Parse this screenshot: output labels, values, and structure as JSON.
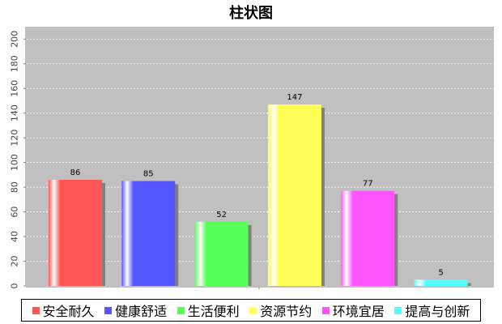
{
  "chart_data": {
    "type": "bar",
    "title": "柱状图",
    "xlabel": "",
    "ylabel": "",
    "ylim": [
      0,
      210
    ],
    "yticks": [
      0,
      20,
      40,
      60,
      80,
      100,
      120,
      140,
      160,
      180,
      200
    ],
    "grid": true,
    "legend_position": "bottom",
    "categories": [
      "安全耐久",
      "健康舒适",
      "生活便利",
      "资源节约",
      "环境宜居",
      "提高与创新"
    ],
    "values": [
      86,
      85,
      52,
      147,
      77,
      5
    ],
    "colors": [
      "#ff5555",
      "#5555ff",
      "#55ff55",
      "#ffff55",
      "#ff55ff",
      "#55ffff"
    ],
    "data_labels": [
      "86",
      "85",
      "52",
      "147",
      "77",
      "5"
    ],
    "background_color": "#c0c0c0"
  }
}
